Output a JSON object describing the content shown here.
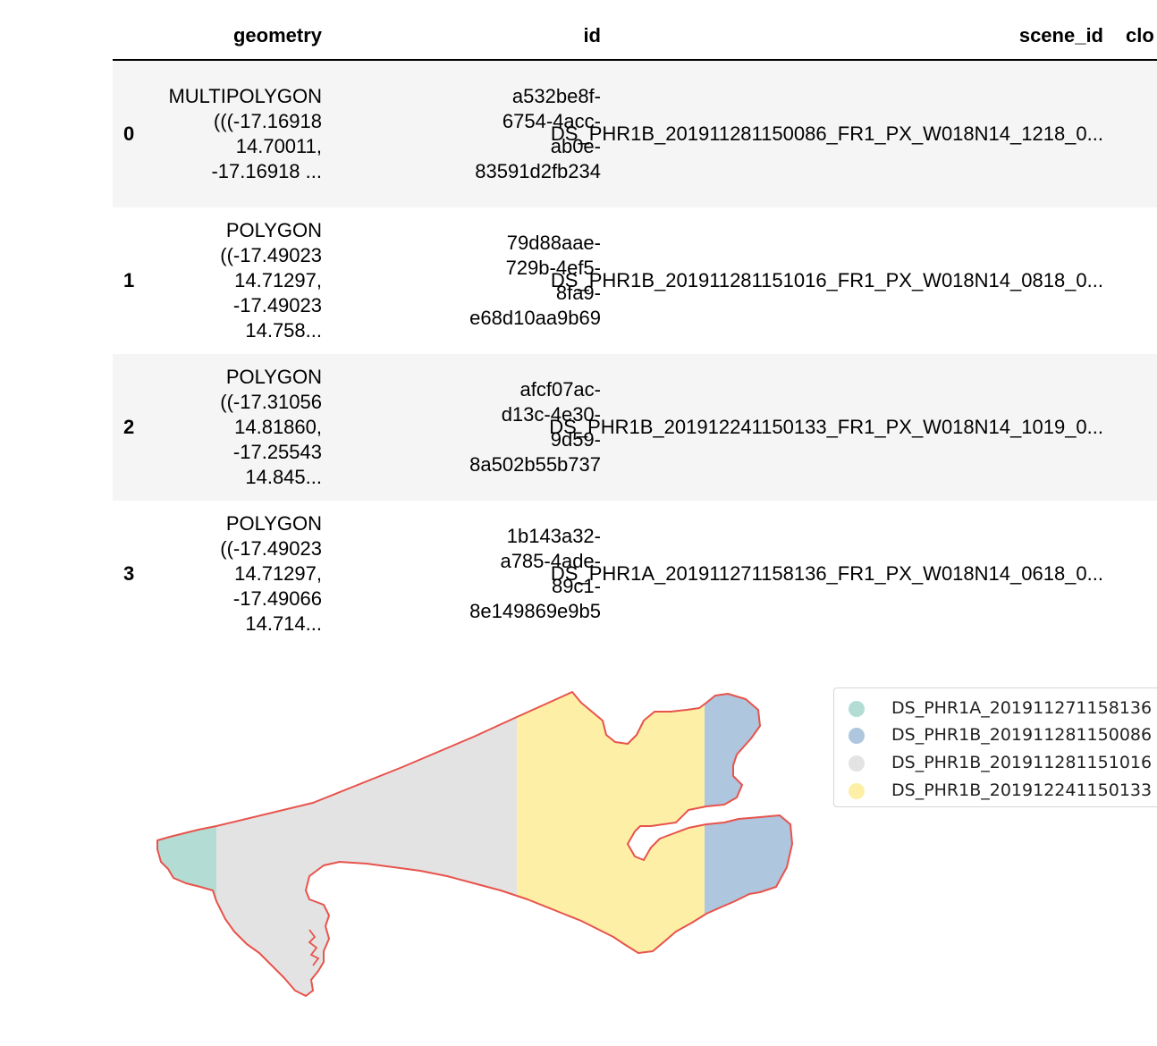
{
  "table": {
    "columns": [
      "geometry",
      "id",
      "scene_id",
      "clo"
    ],
    "rows": [
      {
        "index": "0",
        "geometry": "MULTIPOLYGON\n(((-17.16918\n14.70011,\n-17.16918 ...",
        "id": "a532be8f-\n6754-4acc-\nab0e-\n83591d2fb234",
        "scene_id": "DS_PHR1B_201911281150086_FR1_PX_W018N14_1218_0..."
      },
      {
        "index": "1",
        "geometry": "POLYGON\n((-17.49023\n14.71297,\n-17.49023\n14.758...",
        "id": "79d88aae-\n729b-4ef5-\n8fa9-\ne68d10aa9b69",
        "scene_id": "DS_PHR1B_201911281151016_FR1_PX_W018N14_0818_0..."
      },
      {
        "index": "2",
        "geometry": "POLYGON\n((-17.31056\n14.81860,\n-17.25543\n14.845...",
        "id": "afcf07ac-\nd13c-4e30-\n9d59-\n8a502b55b737",
        "scene_id": "DS_PHR1B_201912241150133_FR1_PX_W018N14_1019_0..."
      },
      {
        "index": "3",
        "geometry": "POLYGON\n((-17.49023\n14.71297,\n-17.49066\n14.714...",
        "id": "1b143a32-\na785-4ade-\n89c1-\n8e149869e9b5",
        "scene_id": "DS_PHR1A_201911271158136_FR1_PX_W018N14_0618_0..."
      }
    ]
  },
  "map": {
    "outline_color": "#e8534c",
    "regions": [
      {
        "name": "DS_PHR1A_201911271158136",
        "color": "#b3ddd4"
      },
      {
        "name": "DS_PHR1B_201911281151016",
        "color": "#e3e3e3"
      },
      {
        "name": "DS_PHR1B_201912241150133",
        "color": "#fdefa6"
      },
      {
        "name": "DS_PHR1B_201911281150086",
        "color": "#aec6de"
      }
    ]
  },
  "legend": {
    "entries": [
      {
        "label": "DS_PHR1A_201911271158136",
        "color": "#b3ddd4"
      },
      {
        "label": "DS_PHR1B_201911281150086",
        "color": "#aec6de"
      },
      {
        "label": "DS_PHR1B_201911281151016",
        "color": "#e3e3e3"
      },
      {
        "label": "DS_PHR1B_201912241150133",
        "color": "#fdefa6"
      }
    ]
  }
}
